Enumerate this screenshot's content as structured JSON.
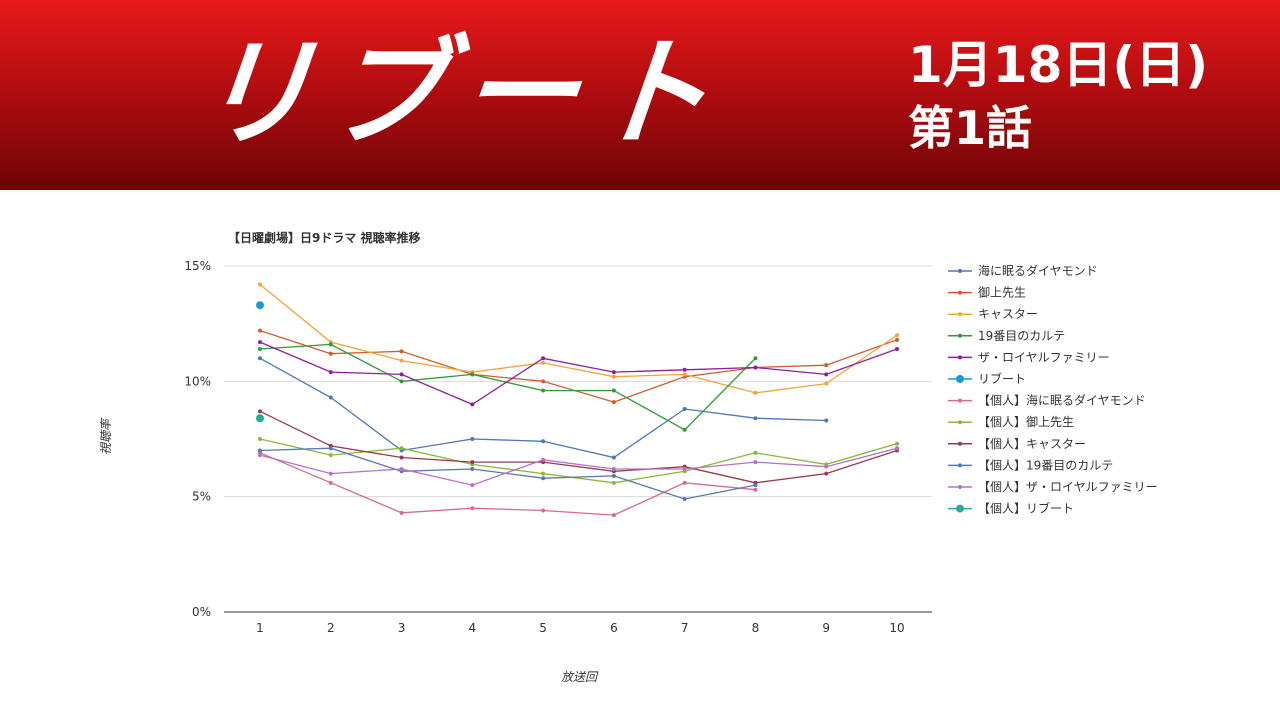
{
  "header": {
    "logo_text": "リブート",
    "air_date": "1月18日(日)",
    "episode": "第1話"
  },
  "colors": {
    "banner_top": "#e8191b",
    "banner_bottom": "#6e0406"
  },
  "chart_data": {
    "type": "line",
    "title": "【日曜劇場】日9ドラマ 視聴率推移",
    "xlabel": "放送回",
    "ylabel": "視聴率",
    "x": [
      1,
      2,
      3,
      4,
      5,
      6,
      7,
      8,
      9,
      10
    ],
    "ylim": [
      0,
      15
    ],
    "yticks": [
      0,
      5,
      10,
      15
    ],
    "ytick_labels": [
      "0%",
      "5%",
      "10%",
      "15%"
    ],
    "grid": true,
    "legend_position": "right",
    "series": [
      {
        "name": "海に眠るダイヤモンド",
        "color": "#4a78b8",
        "values": [
          11.0,
          9.3,
          7.0,
          7.5,
          7.4,
          6.7,
          8.8,
          8.4,
          8.3,
          null
        ]
      },
      {
        "name": "御上先生",
        "color": "#d05c2e",
        "values": [
          12.2,
          11.2,
          11.3,
          10.3,
          10.0,
          9.1,
          10.2,
          10.6,
          10.7,
          11.8
        ]
      },
      {
        "name": "キャスター",
        "color": "#f2a436",
        "values": [
          14.2,
          11.7,
          10.9,
          10.4,
          10.8,
          10.2,
          10.3,
          9.5,
          9.9,
          12.0
        ]
      },
      {
        "name": "19番目のカルテ",
        "color": "#2e9a3a",
        "values": [
          11.4,
          11.6,
          10.0,
          10.3,
          9.6,
          9.6,
          7.9,
          11.0,
          null,
          null
        ]
      },
      {
        "name": "ザ・ロイヤルファミリー",
        "color": "#8e1ea0",
        "values": [
          11.7,
          10.4,
          10.3,
          9.0,
          11.0,
          10.4,
          10.5,
          10.6,
          10.3,
          11.4
        ]
      },
      {
        "name": "リブート",
        "color": "#1a9bd0",
        "values": [
          13.3,
          null,
          null,
          null,
          null,
          null,
          null,
          null,
          null,
          null
        ],
        "marker": "large"
      },
      {
        "name": "【個人】海に眠るダイヤモンド",
        "color": "#d96a8c",
        "values": [
          6.9,
          5.6,
          4.3,
          4.5,
          4.4,
          4.2,
          5.6,
          5.3,
          null,
          null
        ]
      },
      {
        "name": "【個人】御上先生",
        "color": "#8ab83a",
        "values": [
          7.5,
          6.8,
          7.1,
          6.4,
          6.0,
          5.6,
          6.1,
          6.9,
          6.4,
          7.3
        ]
      },
      {
        "name": "【個人】キャスター",
        "color": "#9a3a48",
        "values": [
          8.7,
          7.2,
          6.7,
          6.5,
          6.5,
          6.1,
          6.3,
          5.6,
          6.0,
          7.0
        ]
      },
      {
        "name": "【個人】19番目のカルテ",
        "color": "#5a78b0",
        "values": [
          7.0,
          7.1,
          6.1,
          6.2,
          5.8,
          5.9,
          4.9,
          5.5,
          null,
          null
        ]
      },
      {
        "name": "【個人】ザ・ロイヤルファミリー",
        "color": "#b870c8",
        "values": [
          6.8,
          6.0,
          6.2,
          5.5,
          6.6,
          6.2,
          6.2,
          6.5,
          6.3,
          7.1
        ]
      },
      {
        "name": "【個人】リブート",
        "color": "#2aa898",
        "values": [
          8.4,
          null,
          null,
          null,
          null,
          null,
          null,
          null,
          null,
          null
        ],
        "marker": "large"
      }
    ]
  }
}
